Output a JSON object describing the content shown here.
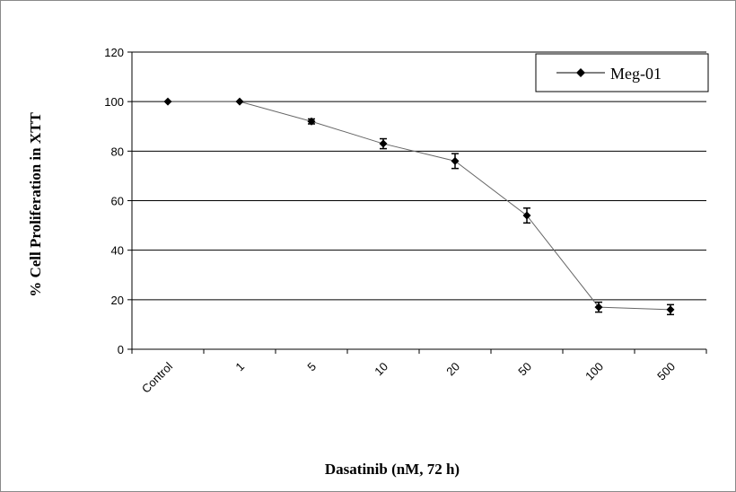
{
  "chart_data": {
    "type": "line",
    "title": "",
    "xlabel": "Dasatinib (nM, 72 h)",
    "ylabel": "% Cell Proliferation in XTT",
    "categories": [
      "Control",
      "1",
      "5",
      "10",
      "20",
      "50",
      "100",
      "500"
    ],
    "series": [
      {
        "name": "Meg-01",
        "values": [
          100,
          100,
          92,
          83,
          76,
          54,
          17,
          16
        ],
        "error": [
          0,
          0,
          1,
          2,
          3,
          3,
          2,
          2
        ],
        "color": "#000000",
        "line_color": "#666666",
        "marker": "diamond"
      }
    ],
    "ylim": [
      0,
      120
    ],
    "yticks": [
      "0",
      "20",
      "40",
      "60",
      "80",
      "100",
      "120"
    ],
    "grid": true,
    "legend": "top-right"
  }
}
